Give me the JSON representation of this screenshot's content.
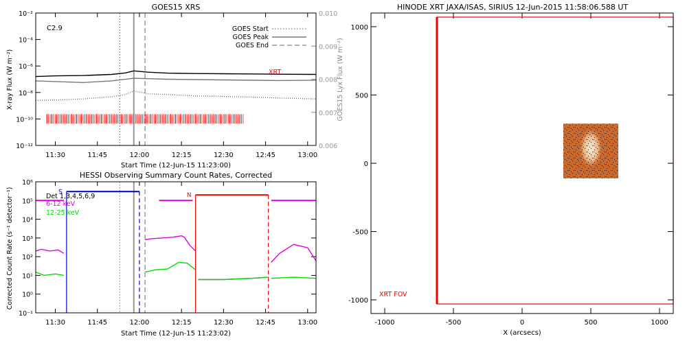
{
  "panels": {
    "goes": {
      "title": "GOES15 XRS",
      "ylabel": "X-ray Flux (W m⁻²)",
      "y2label": "GOES15 Lyx Flux (W m⁻²)",
      "xlabel": "Start Time (12-Jun-15 11:23:00)",
      "flare_class": "C2.9",
      "legend": [
        "GOES Start",
        "GOES Peak",
        "GOES End"
      ],
      "xrt_label": "XRT"
    },
    "hessi": {
      "title": "HESSI Observing Summary Count Rates, Corrected",
      "ylabel": "Corrected Count Rate (s⁻¹ detector⁻¹)",
      "xlabel": "Start Time (12-Jun-15 11:23:02)",
      "det_label": "Det 1,3,4,5,6,9",
      "band_labels": [
        "6-12 keV",
        "12-25 keV"
      ],
      "s_flag": "S",
      "n_flag": "N"
    },
    "xrt": {
      "title": "HINODE XRT JAXA/ISAS, SIRIUS 12-Jun-2015 11:58:06.588 UT",
      "xlabel": "X (arcsecs)",
      "fov_label": "XRT FOV"
    }
  },
  "colors": {
    "axis": "#000000",
    "goes_long": "#000000",
    "goes_short": "#666666",
    "lya": "#777777",
    "xrt_mark": "#ff0000",
    "band_6_12": "#e000e0",
    "band_12_25": "#00dd00",
    "hessi_S": "#0000cc",
    "hessi_N": "#ff0000",
    "fov": "#ee0000",
    "image": "#c86a30"
  },
  "chart_data": [
    {
      "type": "line",
      "title": "GOES15 XRS",
      "xlabel": "Start Time (12-Jun-15 11:23:00)",
      "ylabel": "X-ray Flux (W m⁻²)",
      "y_scale": "log",
      "ylim": [
        1e-12,
        0.01
      ],
      "y2label": "GOES15 Lyx Flux (W m⁻²)",
      "y2lim": [
        0.006,
        0.01
      ],
      "xlim": [
        "11:23",
        "13:03"
      ],
      "x_ticks": [
        "11:30",
        "11:45",
        "12:00",
        "12:15",
        "12:30",
        "12:45",
        "13:00"
      ],
      "y_ticks": [
        "10⁻²",
        "10⁻⁴",
        "10⁻⁶",
        "10⁻⁸",
        "10⁻¹⁰",
        "10⁻¹²"
      ],
      "y2_ticks": [
        "0.010",
        "0.009",
        "0.008",
        "0.007",
        "0.006"
      ],
      "annotations": [
        "C2.9"
      ],
      "events": {
        "start": "11:53",
        "peak": "11:58",
        "end": "12:02"
      },
      "legend": {
        "entries": [
          "GOES Start",
          "GOES Peak",
          "GOES End"
        ],
        "position": "top-right"
      },
      "series": [
        {
          "color": "#000000",
          "style": "solid",
          "x": [
            "11:23",
            "11:30",
            "11:40",
            "11:50",
            "11:55",
            "11:58",
            "12:03",
            "12:10",
            "12:20",
            "12:30",
            "12:40",
            "12:50",
            "13:03"
          ],
          "y": [
            1.6e-07,
            1.8e-07,
            1.9e-07,
            2.3e-07,
            3e-07,
            4.3e-07,
            3.4e-07,
            2.9e-07,
            2.7e-07,
            2.6e-07,
            2.5e-07,
            2.4e-07,
            2.3e-07
          ]
        },
        {
          "color": "#666666",
          "style": "dotted",
          "x": [
            "11:23",
            "11:30",
            "11:40",
            "11:50",
            "11:55",
            "11:58",
            "12:03",
            "12:10",
            "12:20",
            "12:30",
            "12:40",
            "12:50",
            "13:03"
          ],
          "y": [
            2.5e-09,
            2.7e-09,
            3.3e-09,
            4.8e-09,
            7e-09,
            1.3e-08,
            8e-09,
            7e-09,
            5.5e-09,
            5e-09,
            4.5e-09,
            3.8e-09,
            3.3e-09
          ]
        },
        {
          "axis": "right",
          "color": "#777777",
          "style": "solid",
          "x": [
            "11:23",
            "11:40",
            "11:50",
            "11:58",
            "12:10",
            "12:30",
            "12:50",
            "13:03"
          ],
          "y": [
            0.00795,
            0.0079,
            0.00795,
            0.00803,
            0.008,
            0.00798,
            0.00796,
            0.00797
          ]
        }
      ],
      "xrt_obs": {
        "label": "XRT",
        "y": 1e-10,
        "start": "11:27",
        "end": "12:37"
      }
    },
    {
      "type": "line",
      "title": "HESSI Observing Summary Count Rates, Corrected",
      "xlabel": "Start Time (12-Jun-15 11:23:02)",
      "ylabel": "Corrected Count Rate (s⁻¹ detector⁻¹)",
      "y_scale": "log",
      "ylim": [
        0.1,
        1000000
      ],
      "xlim": [
        "11:23",
        "13:03"
      ],
      "x_ticks": [
        "11:30",
        "11:45",
        "12:00",
        "12:15",
        "12:30",
        "12:45",
        "13:00"
      ],
      "y_ticks": [
        "10⁶",
        "10⁵",
        "10⁴",
        "10³",
        "10²",
        "10¹",
        "10⁰",
        "10⁻¹"
      ],
      "legend": {
        "entries": [
          "Det 1,3,4,5,6,9",
          "6-12 keV",
          "12-25 keV"
        ],
        "position": "top-left"
      },
      "events": {
        "start": "11:53",
        "peak": "11:58",
        "end": "12:02"
      },
      "series": [
        {
          "name": "6-12 keV",
          "color": "#e000e0",
          "segments": [
            {
              "x": [
                "11:23",
                "11:25",
                "11:28",
                "11:31",
                "11:33"
              ],
              "y": [
                200,
                250,
                200,
                230,
                150
              ]
            },
            {
              "x": [
                "12:02",
                "12:04",
                "12:08",
                "12:12",
                "12:15",
                "12:16",
                "12:18",
                "12:20"
              ],
              "y": [
                800,
                900,
                1000,
                1100,
                1300,
                1100,
                400,
                200
              ]
            },
            {
              "x": [
                "12:21",
                "12:23",
                "12:30",
                "12:40",
                "12:46"
              ],
              "y": [
                6,
                6,
                6,
                7,
                8
              ]
            },
            {
              "x": [
                "12:47",
                "12:50",
                "12:55",
                "13:00",
                "13:03"
              ],
              "y": [
                50,
                150,
                450,
                300,
                60
              ]
            }
          ]
        },
        {
          "name": "12-25 keV",
          "color": "#00dd00",
          "segments": [
            {
              "x": [
                "11:23",
                "11:26",
                "11:30",
                "11:33"
              ],
              "y": [
                15,
                10,
                12,
                10
              ]
            },
            {
              "x": [
                "12:02",
                "12:06",
                "12:10",
                "12:14",
                "12:17",
                "12:20"
              ],
              "y": [
                15,
                20,
                22,
                50,
                45,
                20
              ]
            },
            {
              "x": [
                "12:21",
                "12:30",
                "12:40",
                "12:46"
              ],
              "y": [
                6,
                6,
                7,
                8
              ]
            },
            {
              "x": [
                "12:47",
                "12:55",
                "13:03"
              ],
              "y": [
                7,
                8,
                7
              ]
            }
          ]
        }
      ],
      "flags": [
        {
          "label": "S",
          "color": "#0000cc",
          "start": "11:34",
          "end": "12:00",
          "y": 300000
        },
        {
          "label": "N",
          "color": "#ff0000",
          "start": "12:20",
          "end": "12:46",
          "y": 200000
        }
      ]
    },
    {
      "type": "image",
      "title": "HINODE XRT JAXA/ISAS, SIRIUS 12-Jun-2015 11:58:06.588 UT",
      "xlabel": "X (arcsecs)",
      "xlim": [
        -1100,
        1100
      ],
      "ylim": [
        -1100,
        1100
      ],
      "x_ticks": [
        "-1000",
        "-500",
        "0",
        "500",
        "1000"
      ],
      "y_ticks": [
        "1000",
        "500",
        "0",
        "-500",
        "-1000"
      ],
      "image_extent": {
        "x": [
          300,
          700
        ],
        "y": [
          -110,
          290
        ]
      },
      "fov": {
        "label": "XRT FOV",
        "x": [
          -620,
          1100
        ],
        "y": [
          -1030,
          1070
        ]
      }
    }
  ]
}
